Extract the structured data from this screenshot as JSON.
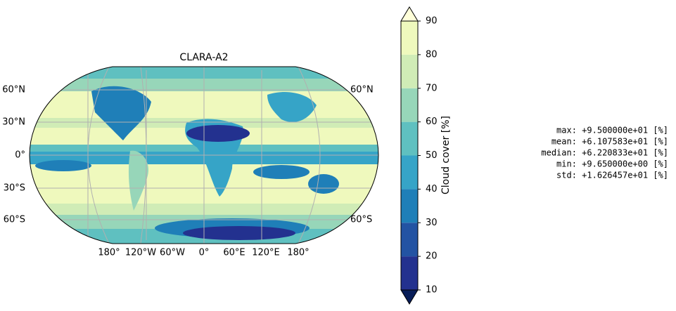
{
  "map": {
    "title": "CLARA-A2",
    "lat_labels_left": [
      "60°N",
      "30°N",
      "0°",
      "30°S",
      "60°S"
    ],
    "lat_labels_right": [
      "60°N",
      "60°S"
    ],
    "lon_labels": [
      "180°",
      "120°W",
      "60°W",
      "0°",
      "60°E",
      "120°E",
      "180°"
    ]
  },
  "colorbar": {
    "label": "Cloud cover [%]",
    "ticks": [
      10,
      20,
      30,
      40,
      50,
      60,
      70,
      80,
      90
    ],
    "colors": [
      "#23318f",
      "#2353a3",
      "#1f7fb8",
      "#36a4c7",
      "#5fc0c0",
      "#97d6b9",
      "#d0ecb6",
      "#eff9bd"
    ],
    "under_color": "#081d58",
    "over_color": "#ffffd9"
  },
  "stats": {
    "lines": [
      "max: +9.500000e+01 [%]",
      "mean: +6.107583e+01 [%]",
      "median: +6.220833e+01 [%]",
      "min: +9.650000e+00 [%]",
      "std: +1.626457e+01 [%]"
    ]
  }
}
